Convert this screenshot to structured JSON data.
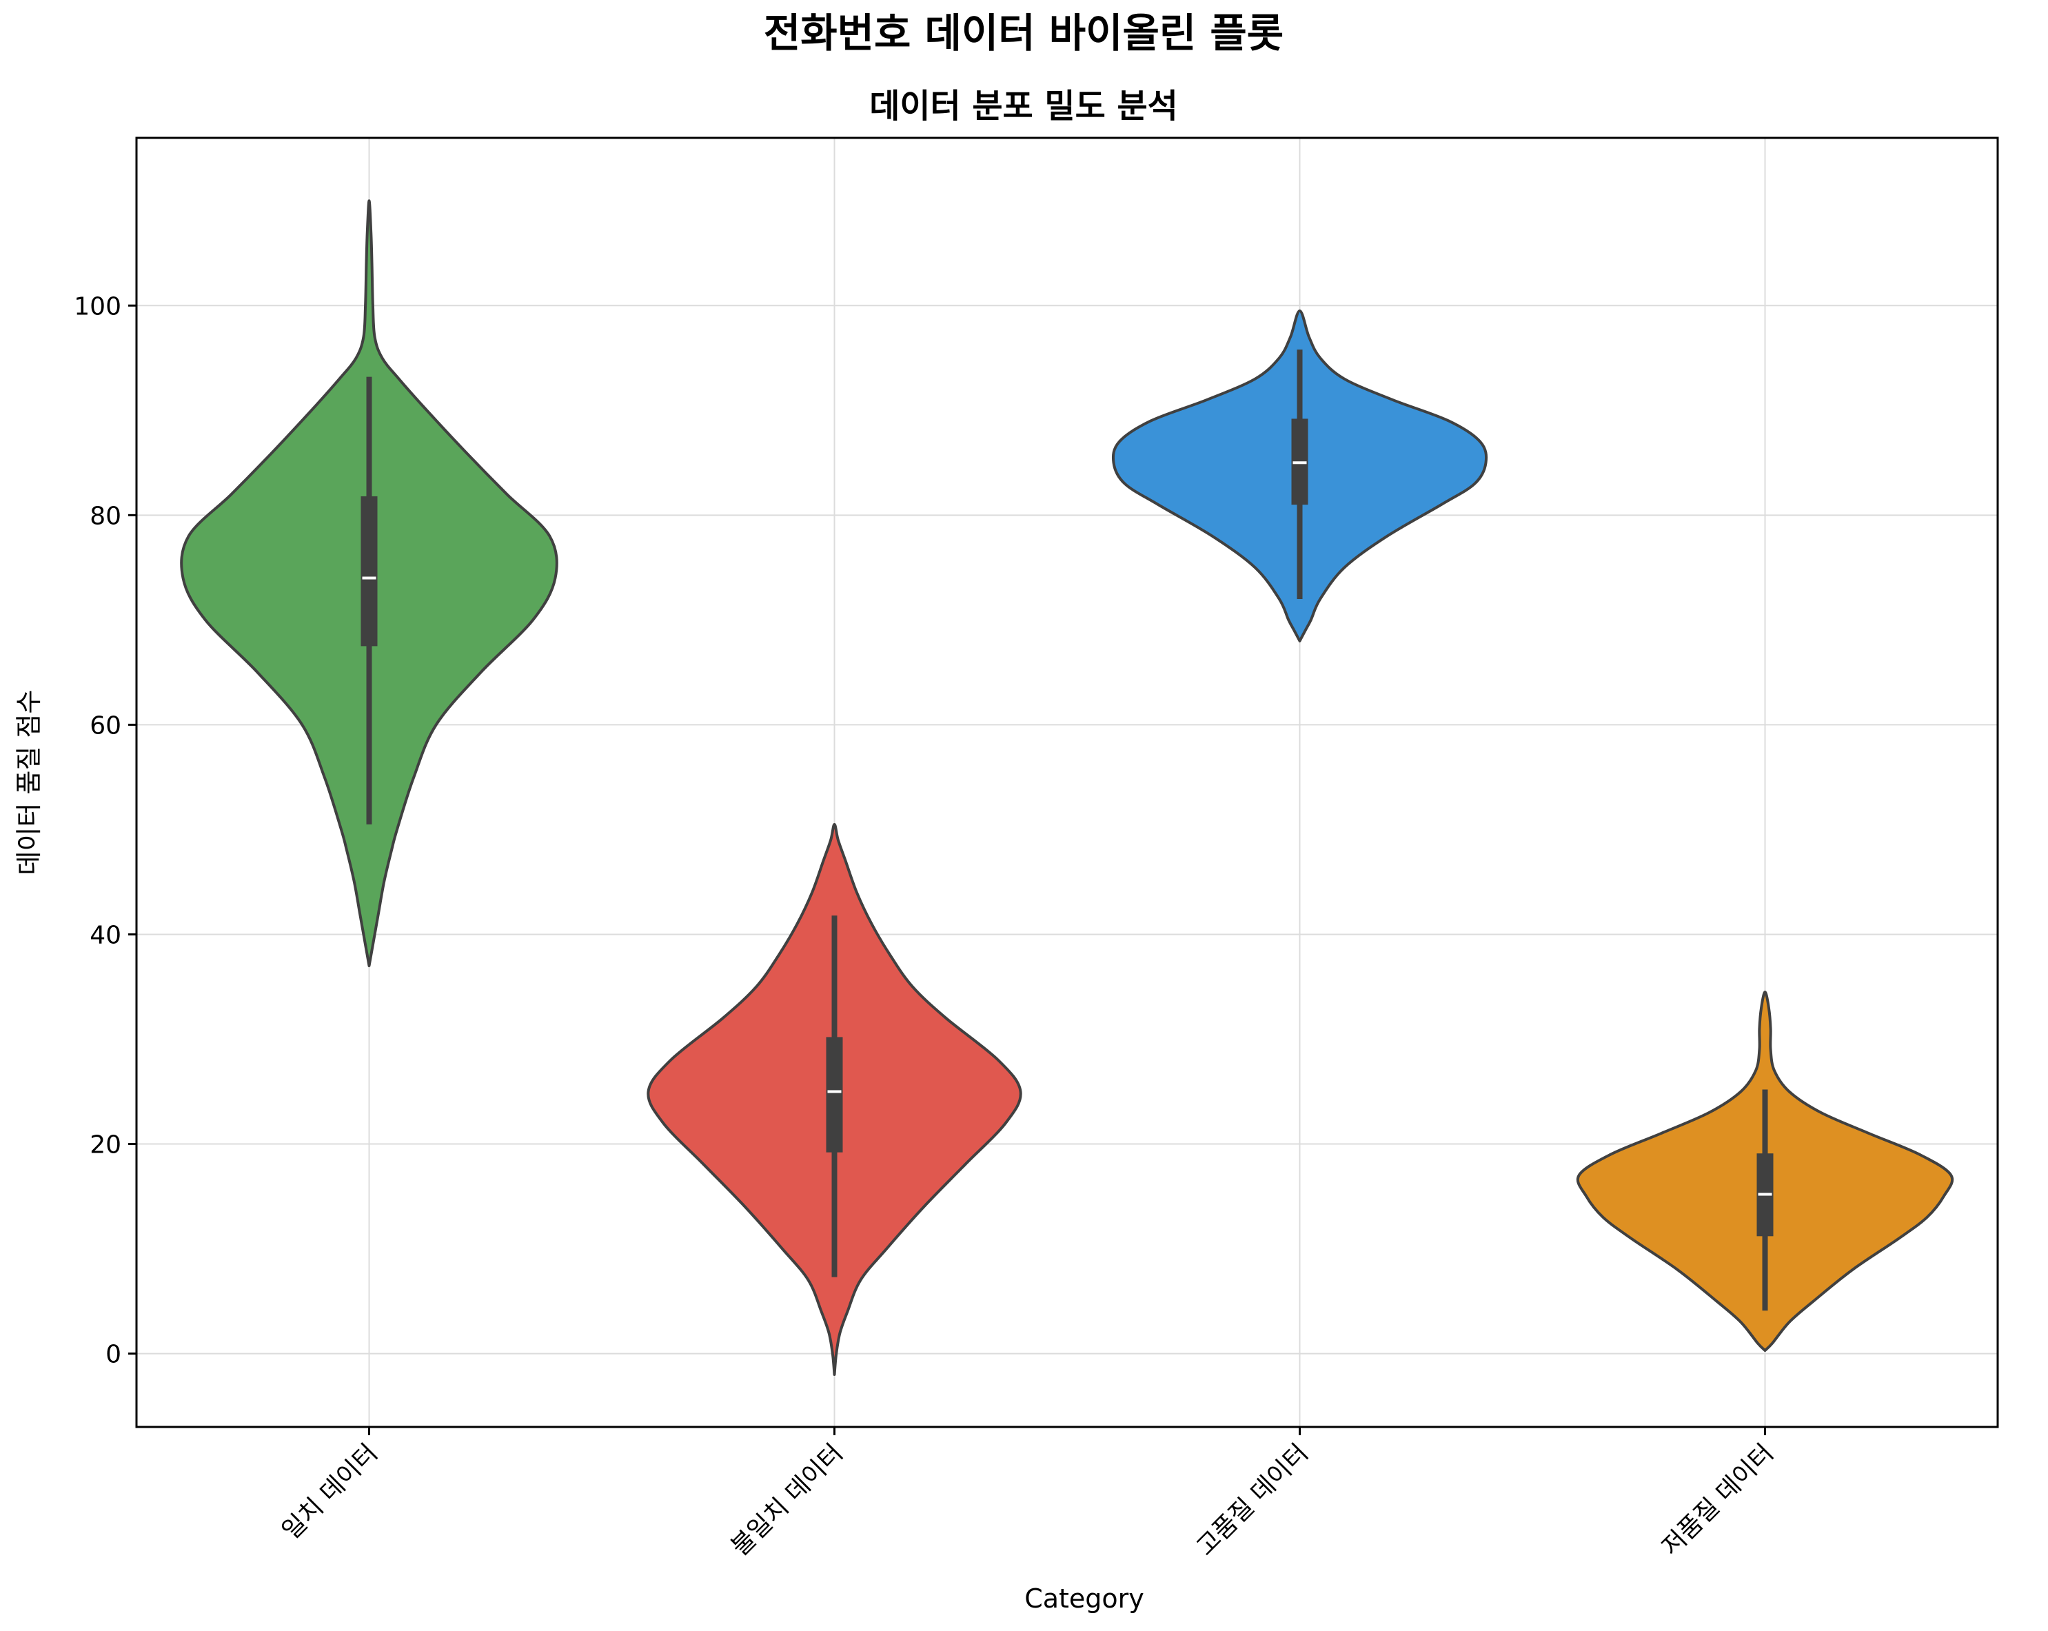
{
  "suptitle": "전화번호 데이터 바이올린 플롯",
  "chart_data": {
    "type": "violin",
    "title": "데이터 분포 밀도 분석",
    "xlabel": "Category",
    "ylabel": "데이터 품질 점수",
    "ylim": [
      -7,
      116
    ],
    "yticks": [
      0,
      20,
      40,
      60,
      80,
      100
    ],
    "grid": true,
    "categories": [
      "일치 데이터",
      "불일치 데이터",
      "고품질 데이터",
      "저품질 데이터"
    ],
    "series": [
      {
        "category": "일치 데이터",
        "color": "#5aa55a",
        "median": 74,
        "q1": 67.5,
        "q3": 81.8,
        "whisker_low": 50.5,
        "whisker_high": 93.2,
        "density": [
          [
            37,
            0
          ],
          [
            38,
            0.01
          ],
          [
            40,
            0.03
          ],
          [
            42,
            0.05
          ],
          [
            45,
            0.08
          ],
          [
            48,
            0.12
          ],
          [
            50,
            0.15
          ],
          [
            55,
            0.24
          ],
          [
            60,
            0.36
          ],
          [
            65,
            0.6
          ],
          [
            70,
            0.88
          ],
          [
            74,
            1.0
          ],
          [
            78,
            0.97
          ],
          [
            82,
            0.74
          ],
          [
            86,
            0.52
          ],
          [
            90,
            0.31
          ],
          [
            93,
            0.16
          ],
          [
            95,
            0.07
          ],
          [
            97,
            0.03
          ],
          [
            100,
            0.02
          ],
          [
            104,
            0.015
          ],
          [
            107,
            0.01
          ],
          [
            110,
            0
          ]
        ]
      },
      {
        "category": "불일치 데이터",
        "color": "#e0584f",
        "median": 25,
        "q1": 19.2,
        "q3": 30.2,
        "whisker_low": 7.3,
        "whisker_high": 41.8,
        "density": [
          [
            -2,
            0
          ],
          [
            0,
            0.01
          ],
          [
            2,
            0.03
          ],
          [
            4,
            0.07
          ],
          [
            7,
            0.14
          ],
          [
            10,
            0.28
          ],
          [
            14,
            0.48
          ],
          [
            18,
            0.7
          ],
          [
            22,
            0.92
          ],
          [
            25,
            1.0
          ],
          [
            28,
            0.88
          ],
          [
            32,
            0.6
          ],
          [
            35,
            0.42
          ],
          [
            38,
            0.3
          ],
          [
            41,
            0.2
          ],
          [
            44,
            0.12
          ],
          [
            47,
            0.06
          ],
          [
            49,
            0.02
          ],
          [
            50.5,
            0
          ]
        ]
      },
      {
        "category": "고품질 데이터",
        "color": "#3a92d8",
        "median": 85,
        "q1": 81,
        "q3": 89.2,
        "whisker_low": 72,
        "whisker_high": 95.8,
        "density": [
          [
            68,
            0
          ],
          [
            69,
            0.03
          ],
          [
            70,
            0.06
          ],
          [
            72,
            0.11
          ],
          [
            75,
            0.24
          ],
          [
            78,
            0.47
          ],
          [
            81,
            0.76
          ],
          [
            83,
            0.94
          ],
          [
            85,
            1.0
          ],
          [
            87,
            0.97
          ],
          [
            89,
            0.8
          ],
          [
            91,
            0.5
          ],
          [
            93,
            0.24
          ],
          [
            95,
            0.11
          ],
          [
            97,
            0.05
          ],
          [
            99.5,
            0
          ]
        ]
      },
      {
        "category": "저품질 데이터",
        "color": "#de9022",
        "median": 15.2,
        "q1": 11.2,
        "q3": 19.1,
        "whisker_low": 4.1,
        "whisker_high": 25.2,
        "density": [
          [
            0.3,
            0
          ],
          [
            1,
            0.04
          ],
          [
            3,
            0.13
          ],
          [
            5,
            0.26
          ],
          [
            8,
            0.47
          ],
          [
            11,
            0.72
          ],
          [
            13,
            0.87
          ],
          [
            15,
            0.96
          ],
          [
            17,
            1.0
          ],
          [
            19,
            0.83
          ],
          [
            21,
            0.56
          ],
          [
            23,
            0.3
          ],
          [
            25,
            0.13
          ],
          [
            27,
            0.05
          ],
          [
            29,
            0.03
          ],
          [
            31,
            0.03
          ],
          [
            33,
            0.02
          ],
          [
            34.5,
            0
          ]
        ]
      }
    ]
  }
}
